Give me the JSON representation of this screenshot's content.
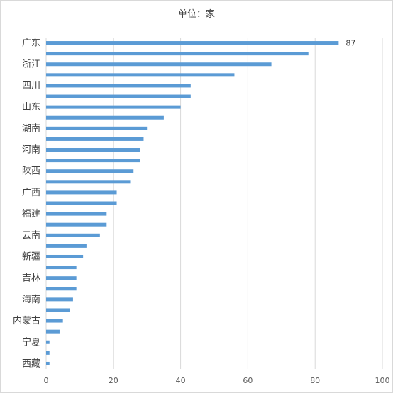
{
  "chart_data": {
    "type": "bar",
    "orientation": "horizontal",
    "title": "单位：家",
    "categories": [
      "广东",
      "",
      "浙江",
      "",
      "四川",
      "",
      "山东",
      "",
      "湖南",
      "",
      "河南",
      "",
      "陕西",
      "",
      "广西",
      "",
      "福建",
      "",
      "云南",
      "",
      "新疆",
      "",
      "吉林",
      "",
      "海南",
      "",
      "内蒙古",
      "",
      "宁夏",
      "",
      "西藏"
    ],
    "values": [
      87,
      78,
      67,
      56,
      43,
      43,
      40,
      35,
      30,
      29,
      28,
      28,
      26,
      25,
      21,
      21,
      18,
      18,
      16,
      12,
      11,
      9,
      9,
      9,
      8,
      7,
      5,
      4,
      1,
      1,
      1
    ],
    "data_labels": {
      "0": "87"
    },
    "xlim": [
      0,
      100
    ],
    "xticks": [
      0,
      20,
      40,
      60,
      80,
      100
    ],
    "grid": true,
    "bar_color": "#5b9bd5",
    "grid_color": "#d9d9d9"
  }
}
